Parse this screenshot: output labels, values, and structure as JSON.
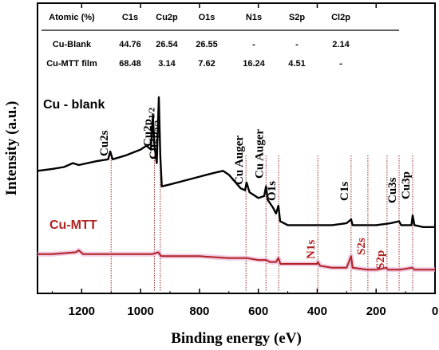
{
  "chart_data": {
    "type": "line",
    "title": "",
    "xlabel": "Binding energy (eV)",
    "ylabel": "Intensity (a.u.)",
    "xlim": [
      1350,
      0
    ],
    "x_ticks": [
      "1200",
      "1000",
      "800",
      "600",
      "400",
      "200",
      "0"
    ],
    "x_tick_values": [
      1200,
      1000,
      800,
      600,
      400,
      200,
      0
    ],
    "y_unit": "a.u.",
    "grid": false,
    "series": [
      {
        "name": "Cu - blank",
        "color": "#000000",
        "points": [
          [
            1350,
            0.62
          ],
          [
            1300,
            0.63
          ],
          [
            1260,
            0.64
          ],
          [
            1230,
            0.66
          ],
          [
            1210,
            0.65
          ],
          [
            1150,
            0.67
          ],
          [
            1110,
            0.68
          ],
          [
            1103,
            0.72
          ],
          [
            1095,
            0.68
          ],
          [
            1050,
            0.7
          ],
          [
            1000,
            0.73
          ],
          [
            980,
            0.75
          ],
          [
            965,
            0.73
          ],
          [
            958,
            0.91
          ],
          [
            953,
            0.75
          ],
          [
            945,
            0.66
          ],
          [
            938,
            1.0
          ],
          [
            933,
            0.7
          ],
          [
            928,
            0.54
          ],
          [
            900,
            0.55
          ],
          [
            850,
            0.57
          ],
          [
            800,
            0.59
          ],
          [
            750,
            0.61
          ],
          [
            720,
            0.62
          ],
          [
            700,
            0.6
          ],
          [
            660,
            0.53
          ],
          [
            645,
            0.52
          ],
          [
            640,
            0.56
          ],
          [
            630,
            0.51
          ],
          [
            600,
            0.48
          ],
          [
            580,
            0.49
          ],
          [
            574,
            0.54
          ],
          [
            568,
            0.47
          ],
          [
            550,
            0.43
          ],
          [
            540,
            0.4
          ],
          [
            532,
            0.44
          ],
          [
            526,
            0.36
          ],
          [
            500,
            0.34
          ],
          [
            450,
            0.34
          ],
          [
            400,
            0.34
          ],
          [
            350,
            0.34
          ],
          [
            300,
            0.35
          ],
          [
            285,
            0.37
          ],
          [
            280,
            0.34
          ],
          [
            200,
            0.34
          ],
          [
            150,
            0.35
          ],
          [
            122,
            0.36
          ],
          [
            115,
            0.34
          ],
          [
            80,
            0.34
          ],
          [
            76,
            0.39
          ],
          [
            70,
            0.34
          ],
          [
            40,
            0.33
          ],
          [
            0,
            0.33
          ]
        ]
      },
      {
        "name": "Cu-MTT",
        "color": "#B22222",
        "points": [
          [
            1350,
            0.19
          ],
          [
            1300,
            0.19
          ],
          [
            1220,
            0.2
          ],
          [
            1210,
            0.21
          ],
          [
            1195,
            0.19
          ],
          [
            1100,
            0.19
          ],
          [
            1000,
            0.19
          ],
          [
            960,
            0.19
          ],
          [
            940,
            0.2
          ],
          [
            930,
            0.18
          ],
          [
            850,
            0.18
          ],
          [
            800,
            0.18
          ],
          [
            700,
            0.17
          ],
          [
            640,
            0.17
          ],
          [
            600,
            0.16
          ],
          [
            574,
            0.16
          ],
          [
            560,
            0.15
          ],
          [
            540,
            0.15
          ],
          [
            532,
            0.17
          ],
          [
            525,
            0.14
          ],
          [
            500,
            0.14
          ],
          [
            450,
            0.14
          ],
          [
            400,
            0.14
          ],
          [
            398,
            0.15
          ],
          [
            390,
            0.13
          ],
          [
            350,
            0.12
          ],
          [
            300,
            0.12
          ],
          [
            285,
            0.18
          ],
          [
            280,
            0.12
          ],
          [
            230,
            0.11
          ],
          [
            200,
            0.11
          ],
          [
            165,
            0.12
          ],
          [
            160,
            0.11
          ],
          [
            120,
            0.11
          ],
          [
            77,
            0.12
          ],
          [
            70,
            0.11
          ],
          [
            30,
            0.11
          ],
          [
            0,
            0.11
          ]
        ]
      }
    ],
    "series_labels": [
      "Cu - blank",
      "Cu-MTT"
    ],
    "peak_labels": {
      "black": [
        {
          "text": "Cu2s",
          "x": 1100
        },
        {
          "text": "Cu2p",
          "sub": "1/2",
          "x": 953
        },
        {
          "text": "Cu2p",
          "sub": "3/2",
          "x": 933
        },
        {
          "text": "Cu Auger",
          "x": 642
        },
        {
          "text": "Cu Auger",
          "x": 574
        },
        {
          "text": "O1s",
          "x": 531
        },
        {
          "text": "C1s",
          "x": 285
        },
        {
          "text": "Cu3s",
          "x": 122
        },
        {
          "text": "Cu3p",
          "x": 76
        }
      ],
      "red": [
        {
          "text": "N1s",
          "x": 398
        },
        {
          "text": "S2s",
          "x": 228
        },
        {
          "text": "S2p",
          "x": 163
        }
      ]
    },
    "marker_lines": [
      1100,
      953,
      933,
      642,
      574,
      531,
      398,
      285,
      228,
      163,
      122,
      76
    ],
    "inset_table": {
      "headers": [
        "Atomic (%)",
        "C1s",
        "Cu2p",
        "O1s",
        "N1s",
        "S2p",
        "Cl2p"
      ],
      "rows": [
        [
          "Cu-Blank",
          "44.76",
          "26.54",
          "26.55",
          "-",
          "-",
          "2.14"
        ],
        [
          "Cu-MTT film",
          "68.48",
          "3.14",
          "7.62",
          "16.24",
          "4.51",
          "-"
        ]
      ]
    }
  }
}
